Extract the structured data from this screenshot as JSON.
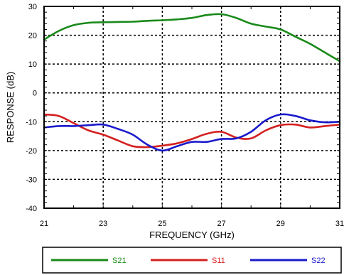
{
  "chart_data": {
    "type": "line",
    "title": "",
    "xlabel": "FREQUENCY (GHz)",
    "ylabel": "RESPONSE (dB)",
    "xlim": [
      21,
      31
    ],
    "ylim": [
      -40,
      30
    ],
    "xticks": [
      21,
      23,
      25,
      27,
      29,
      31
    ],
    "yticks": [
      30,
      20,
      10,
      0,
      -10,
      -20,
      -30,
      -40
    ],
    "grid": true,
    "legend_position": "bottom",
    "series": [
      {
        "name": "S21",
        "color": "#1a8a1a",
        "x": [
          21,
          21.5,
          22,
          22.5,
          23,
          23.5,
          24,
          24.5,
          25,
          25.5,
          26,
          26.5,
          27,
          27.5,
          28,
          28.5,
          29,
          29.5,
          30,
          30.5,
          31
        ],
        "y": [
          18.5,
          21.5,
          23.5,
          24.3,
          24.5,
          24.6,
          24.7,
          25.0,
          25.2,
          25.5,
          26.0,
          27.0,
          27.3,
          26.0,
          24.0,
          23.0,
          22.0,
          19.5,
          17.0,
          14.0,
          11.0
        ]
      },
      {
        "name": "S11",
        "color": "#d42020",
        "x": [
          21,
          21.5,
          22,
          22.5,
          23,
          23.5,
          24,
          24.5,
          25,
          25.5,
          26,
          26.5,
          27,
          27.5,
          28,
          28.5,
          29,
          29.5,
          30,
          30.5,
          31
        ],
        "y": [
          -7.5,
          -8.0,
          -10.5,
          -13.0,
          -14.5,
          -16.5,
          -18.5,
          -18.8,
          -18.3,
          -17.5,
          -16.0,
          -14.2,
          -13.5,
          -15.5,
          -15.8,
          -13.0,
          -11.2,
          -11.0,
          -12.0,
          -11.5,
          -11.0
        ]
      },
      {
        "name": "S22",
        "color": "#1a1acc",
        "x": [
          21,
          21.5,
          22,
          22.5,
          23,
          23.5,
          24,
          24.5,
          25,
          25.5,
          26,
          26.5,
          27,
          27.5,
          28,
          28.5,
          29,
          29.5,
          30,
          30.5,
          31
        ],
        "y": [
          -12.0,
          -11.5,
          -11.5,
          -11.2,
          -11.0,
          -12.5,
          -14.5,
          -18.0,
          -20.0,
          -18.5,
          -17.0,
          -17.0,
          -16.0,
          -15.8,
          -13.5,
          -9.5,
          -7.5,
          -8.0,
          -9.5,
          -10.2,
          -10.0
        ]
      }
    ]
  }
}
